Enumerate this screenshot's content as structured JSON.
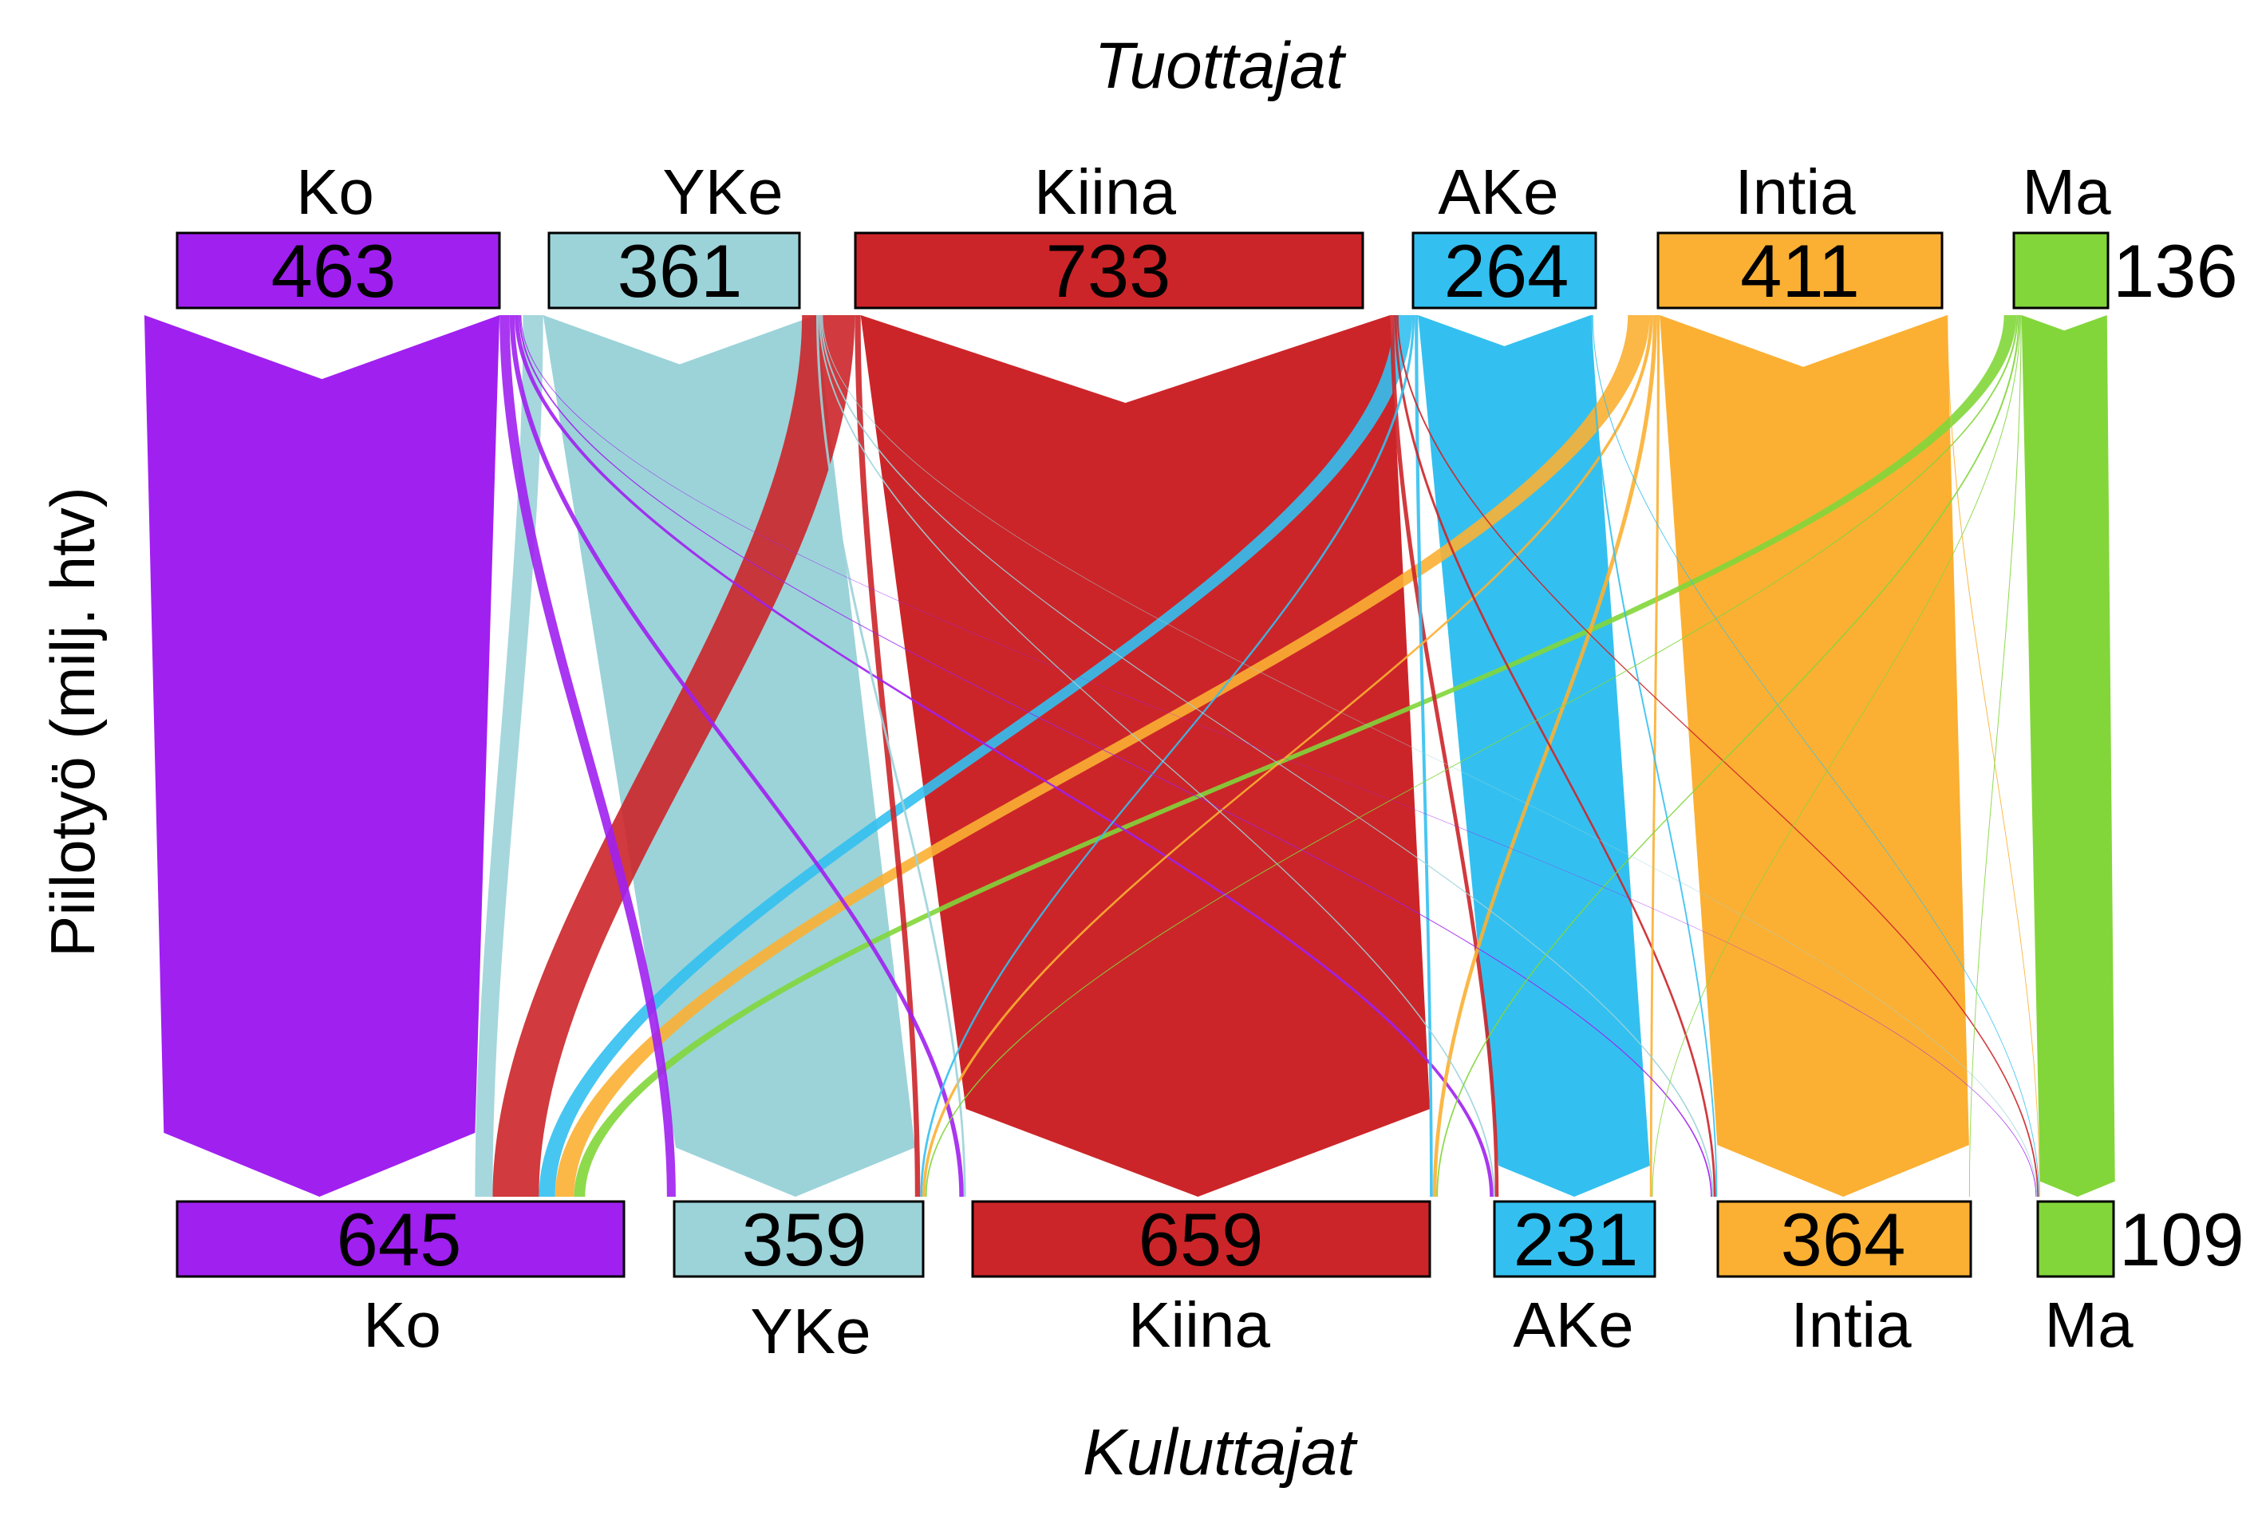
{
  "chart_data": {
    "type": "sankey",
    "title_top": "Tuottajat",
    "title_bottom": "Kuluttajat",
    "ylabel": "Piilotyö (milj. htv)",
    "colors": {
      "Ko": "#a020f0",
      "YKe": "#9bd3d9",
      "Kiina": "#cc2529",
      "AKe": "#33c0f0",
      "Intia": "#fbb033",
      "Ma": "#82d63a"
    },
    "producers": [
      {
        "name": "Ko",
        "value": 463
      },
      {
        "name": "YKe",
        "value": 361
      },
      {
        "name": "Kiina",
        "value": 733
      },
      {
        "name": "AKe",
        "value": 264
      },
      {
        "name": "Intia",
        "value": 411
      },
      {
        "name": "Ma",
        "value": 136
      }
    ],
    "consumers": [
      {
        "name": "Ko",
        "value": 645
      },
      {
        "name": "YKe",
        "value": 359
      },
      {
        "name": "Kiina",
        "value": 659
      },
      {
        "name": "AKe",
        "value": 231
      },
      {
        "name": "Intia",
        "value": 364
      },
      {
        "name": "Ma",
        "value": 109
      }
    ],
    "flows": [
      {
        "from": "Ko",
        "to": "Ko",
        "value": 424
      },
      {
        "from": "Ko",
        "to": "YKe",
        "value": 12
      },
      {
        "from": "Ko",
        "to": "Kiina",
        "value": 6
      },
      {
        "from": "Ko",
        "to": "AKe",
        "value": 5
      },
      {
        "from": "Ko",
        "to": "Intia",
        "value": 2
      },
      {
        "from": "Ko",
        "to": "Ma",
        "value": 1
      },
      {
        "from": "YKe",
        "to": "Ko",
        "value": 24
      },
      {
        "from": "YKe",
        "to": "YKe",
        "value": 326
      },
      {
        "from": "YKe",
        "to": "Kiina",
        "value": 3
      },
      {
        "from": "YKe",
        "to": "AKe",
        "value": 2
      },
      {
        "from": "YKe",
        "to": "Intia",
        "value": 2
      },
      {
        "from": "YKe",
        "to": "Ma",
        "value": 1
      },
      {
        "from": "Kiina",
        "to": "Ko",
        "value": 63
      },
      {
        "from": "Kiina",
        "to": "YKe",
        "value": 7
      },
      {
        "from": "Kiina",
        "to": "Kiina",
        "value": 632
      },
      {
        "from": "Kiina",
        "to": "AKe",
        "value": 5
      },
      {
        "from": "Kiina",
        "to": "Intia",
        "value": 3
      },
      {
        "from": "Kiina",
        "to": "Ma",
        "value": 2
      },
      {
        "from": "AKe",
        "to": "Ko",
        "value": 22
      },
      {
        "from": "AKe",
        "to": "YKe",
        "value": 3
      },
      {
        "from": "AKe",
        "to": "Kiina",
        "value": 4
      },
      {
        "from": "AKe",
        "to": "AKe",
        "value": 206
      },
      {
        "from": "AKe",
        "to": "Intia",
        "value": 2
      },
      {
        "from": "AKe",
        "to": "Ma",
        "value": 1
      },
      {
        "from": "Intia",
        "to": "Ko",
        "value": 26
      },
      {
        "from": "Intia",
        "to": "YKe",
        "value": 4
      },
      {
        "from": "Intia",
        "to": "Kiina",
        "value": 5
      },
      {
        "from": "Intia",
        "to": "AKe",
        "value": 3
      },
      {
        "from": "Intia",
        "to": "Intia",
        "value": 343
      },
      {
        "from": "Intia",
        "to": "Ma",
        "value": 1
      },
      {
        "from": "Ma",
        "to": "Ko",
        "value": 15
      },
      {
        "from": "Ma",
        "to": "YKe",
        "value": 2
      },
      {
        "from": "Ma",
        "to": "Kiina",
        "value": 2
      },
      {
        "from": "Ma",
        "to": "AKe",
        "value": 1
      },
      {
        "from": "Ma",
        "to": "Intia",
        "value": 1
      },
      {
        "from": "Ma",
        "to": "Ma",
        "value": 102
      }
    ]
  }
}
